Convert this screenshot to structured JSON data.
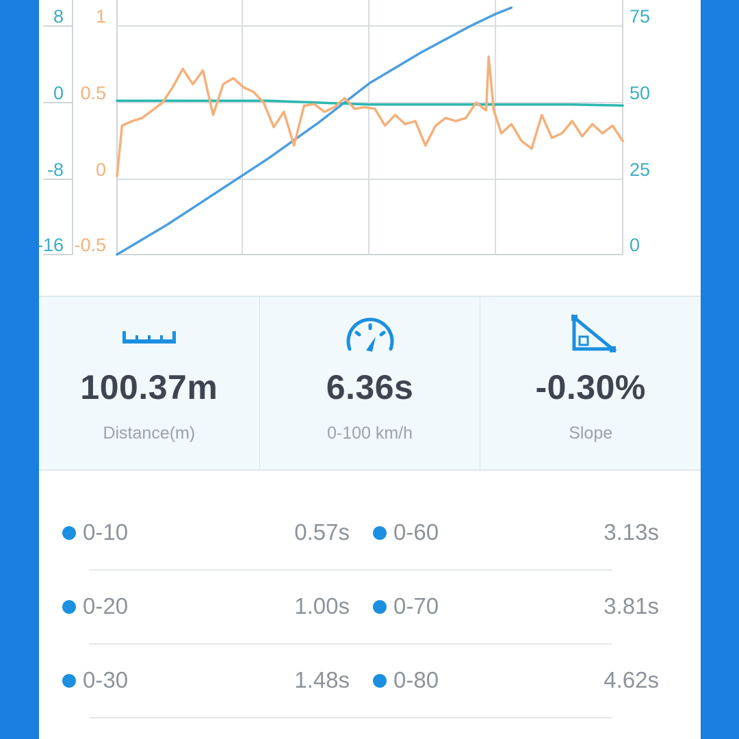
{
  "chart_data": {
    "type": "line",
    "grid": true,
    "axes": {
      "left_outer": {
        "ticks": [
          "8",
          "0",
          "-8",
          "-16"
        ],
        "color": "#3aaec2"
      },
      "left_inner": {
        "ticks": [
          "1",
          "0.5",
          "0",
          "-0.5"
        ],
        "color": "#f2b27a"
      },
      "right": {
        "ticks": [
          "75",
          "50",
          "25",
          "0"
        ],
        "color": "#3aaec2"
      }
    },
    "series": [
      {
        "color": "#4b9ee0",
        "axis": "right",
        "x": [
          0,
          0.1,
          0.2,
          0.3,
          0.4,
          0.5,
          0.6,
          0.7,
          0.75,
          0.78
        ],
        "y": [
          0,
          10,
          21,
          32,
          44,
          57,
          67,
          76,
          80,
          82
        ]
      },
      {
        "color": "#2ab8b0",
        "axis": "left_outer",
        "x": [
          0,
          0.3,
          0.5,
          0.7,
          0.9,
          1.0
        ],
        "y": [
          0.2,
          0.2,
          -0.2,
          -0.2,
          -0.2,
          -0.3
        ]
      },
      {
        "color": "#f4b07a",
        "axis": "left_inner",
        "x": [
          0,
          0.01,
          0.03,
          0.05,
          0.07,
          0.09,
          0.11,
          0.13,
          0.15,
          0.17,
          0.19,
          0.21,
          0.23,
          0.25,
          0.27,
          0.29,
          0.31,
          0.33,
          0.35,
          0.37,
          0.39,
          0.41,
          0.43,
          0.45,
          0.47,
          0.49,
          0.51,
          0.53,
          0.55,
          0.57,
          0.59,
          0.61,
          0.63,
          0.65,
          0.67,
          0.69,
          0.71,
          0.73,
          0.735,
          0.745,
          0.76,
          0.78,
          0.8,
          0.82,
          0.84,
          0.86,
          0.88,
          0.9,
          0.92,
          0.94,
          0.96,
          0.98,
          1.0
        ],
        "y": [
          0.02,
          0.35,
          0.38,
          0.4,
          0.45,
          0.5,
          0.6,
          0.72,
          0.62,
          0.71,
          0.42,
          0.62,
          0.66,
          0.6,
          0.57,
          0.5,
          0.34,
          0.44,
          0.22,
          0.48,
          0.49,
          0.44,
          0.47,
          0.53,
          0.46,
          0.47,
          0.46,
          0.35,
          0.42,
          0.36,
          0.38,
          0.22,
          0.35,
          0.4,
          0.38,
          0.4,
          0.5,
          0.45,
          0.8,
          0.45,
          0.3,
          0.36,
          0.25,
          0.2,
          0.42,
          0.27,
          0.3,
          0.38,
          0.28,
          0.36,
          0.3,
          0.35,
          0.25
        ]
      }
    ]
  },
  "stats": [
    {
      "icon": "ruler-icon",
      "value": "100.37m",
      "caption": "Distance(m)"
    },
    {
      "icon": "speedometer-icon",
      "value": "6.36s",
      "caption": "0-100 km/h"
    },
    {
      "icon": "slope-icon",
      "value": "-0.30%",
      "caption": "Slope"
    }
  ],
  "splits": [
    {
      "left": {
        "label": "0-10",
        "time": "0.57s"
      },
      "right": {
        "label": "0-60",
        "time": "3.13s"
      }
    },
    {
      "left": {
        "label": "0-20",
        "time": "1.00s"
      },
      "right": {
        "label": "0-70",
        "time": "3.81s"
      }
    },
    {
      "left": {
        "label": "0-30",
        "time": "1.48s"
      },
      "right": {
        "label": "0-80",
        "time": "4.62s"
      }
    }
  ],
  "colors": {
    "background": "#1a7fe0",
    "accent": "#1b8fe0",
    "stats_background": "#f1f9fc"
  }
}
